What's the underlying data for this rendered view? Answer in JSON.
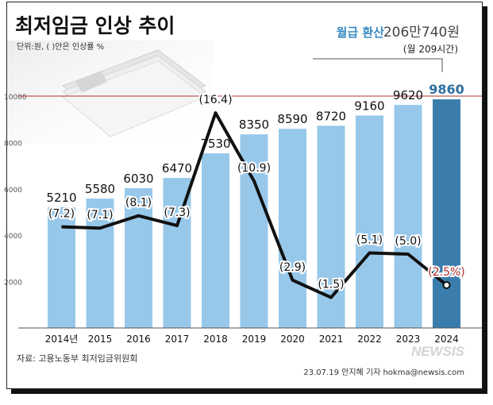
{
  "chart_data": {
    "type": "bar",
    "title": "최저임금 인상 추이",
    "unit_note": "단위:원, ( )안은 인상률 %",
    "monthly_note_label": "월급 환산",
    "monthly_note_value": "206만740원",
    "monthly_note_hours": "(월 209시간)",
    "categories": [
      "2014년",
      "2015",
      "2016",
      "2017",
      "2018",
      "2019",
      "2020",
      "2021",
      "2022",
      "2023",
      "2024"
    ],
    "values": [
      5210,
      5580,
      6030,
      6470,
      7530,
      8350,
      8590,
      8720,
      9160,
      9620,
      9860
    ],
    "value_labels": [
      "5210",
      "5580",
      "6030",
      "6470",
      "7530",
      "8350",
      "8590",
      "8720",
      "9160",
      "9620",
      "9860"
    ],
    "growth_rate": [
      7.2,
      7.1,
      8.1,
      7.3,
      16.4,
      10.9,
      2.9,
      1.5,
      5.1,
      5.0,
      2.5
    ],
    "growth_labels": [
      "(7.2)",
      "(7.1)",
      "(8.1)",
      "(7.3)",
      "(16.4)",
      "(10.9)",
      "(2.9)",
      "(1.5)",
      "(5.1)",
      "(5.0)",
      "(2.5%)"
    ],
    "y_ticks": [
      "2000",
      "4000",
      "6000",
      "8000",
      "10000"
    ],
    "ylim": [
      0,
      10000
    ],
    "highlight_color": "#3a7dad",
    "bar_color": "#97c8ea",
    "highlight_label_color": "#2e6f9f",
    "line_color": "#111111",
    "latest_rate_color": "#b02a2a",
    "reference_line_color": "#b03030",
    "source": "자료: 고용노동부 최저임금위원회",
    "credit": "23.07.19 안지혜 기자 hokma@newsis.com",
    "watermark": "NEWSIS"
  }
}
